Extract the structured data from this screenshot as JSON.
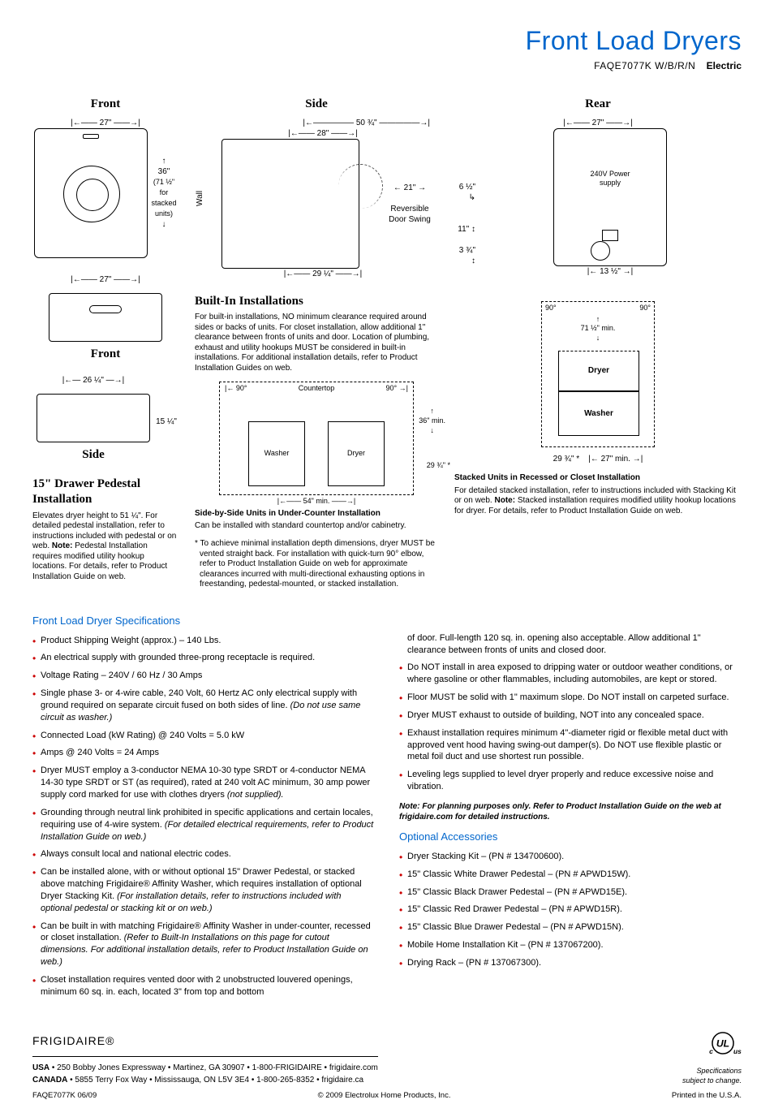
{
  "header": {
    "title": "Front Load Dryers",
    "model": "FAQE7077K W/B/R/N",
    "type": "Electric"
  },
  "colors": {
    "accent_blue": "#0066cc",
    "bullet_red": "#c00000",
    "text": "#000000",
    "background": "#ffffff"
  },
  "diagrams": {
    "front": {
      "title": "Front",
      "width_dim": "27\"",
      "height_dim": "36\"",
      "height_note": "(71 ½\" for stacked units)"
    },
    "side": {
      "title": "Side",
      "wall_label": "Wall",
      "depth_top": "50 ¾\"",
      "depth_28": "28\"",
      "depth_21": "21\"",
      "door_swing": "Reversible Door Swing",
      "depth_bottom": "29 ¼\""
    },
    "rear": {
      "title": "Rear",
      "width": "27\"",
      "power_label": "240V Power supply",
      "dim_6half": "6 ½\"",
      "dim_11": "11\"",
      "dim_3_3_4": "3 ¾\"",
      "dim_13half": "13 ½\""
    },
    "pedestal": {
      "front_label": "Front",
      "side_label": "Side",
      "front_width": "27\"",
      "side_depth": "26 ¼\"",
      "side_height": "15 ¼\"",
      "title": "15\" Drawer Pedestal Installation",
      "body": "Elevates dryer height to 51 ¼\". For detailed pedestal installation, refer to instructions included with pedestal or on web.",
      "note_label": "Note:",
      "note_body": "Pedestal Installation requires modified utility hookup locations. For details, refer to Product Installation Guide on web."
    },
    "builtin": {
      "title": "Built-In Installations",
      "body": "For built-in installations, NO minimum clearance required around sides or backs of units. For closet installation, allow additional 1\" clearance between fronts of units and door. Location of plumbing, exhaust and utility hookups MUST be considered in built-in installations. For additional installation details, refer to Product Installation Guides on web.",
      "ninety_l": "90°",
      "ninety_r": "90°",
      "countertop": "Countertop",
      "height_min": "36\" min.",
      "width_min": "54\" min.",
      "depth_note": "29 ¾\" *",
      "washer": "Washer",
      "dryer": "Dryer",
      "caption_bold": "Side-by-Side Units in Under-Counter Installation",
      "caption_sub": "Can be installed with standard countertop and/or cabinetry.",
      "asterisk": "* To achieve minimal installation depth dimensions, dryer MUST be vented straight back. For installation with quick-turn 90° elbow, refer to Product Installation Guide on web for approximate clearances incurred with multi-directional exhausting options in freestanding, pedestal-mounted, or stacked installation."
    },
    "stacked": {
      "ninety_l": "90°",
      "ninety_r": "90°",
      "height": "71 ½\" min.",
      "dryer": "Dryer",
      "washer": "Washer",
      "depth": "29 ¾\" *",
      "width": "27\" min.",
      "caption_bold": "Stacked Units in Recessed or Closet Installation",
      "body": "For detailed stacked installation, refer to instructions included with Stacking Kit or on web.",
      "note_label": "Note:",
      "note_body": "Stacked installation requires modified utility hookup locations for dryer. For details, refer to Product Installation Guide on web."
    }
  },
  "specs": {
    "title": "Front Load Dryer Specifications",
    "left": [
      {
        "t": "Product Shipping Weight (approx.) – 140 Lbs."
      },
      {
        "t": "An electrical supply with grounded three-prong receptacle is required."
      },
      {
        "t": "Voltage Rating – 240V / 60 Hz / 30 Amps"
      },
      {
        "t": "Single phase 3- or 4-wire cable, 240 Volt, 60 Hertz AC only electrical supply with ground required on separate circuit fused on both sides of line. ",
        "i": "(Do not use same circuit as washer.)"
      },
      {
        "t": "Connected Load (kW Rating) @ 240 Volts = 5.0 kW"
      },
      {
        "t": "Amps @ 240 Volts = 24 Amps"
      },
      {
        "t": "Dryer MUST employ a 3-conductor NEMA 10-30 type SRDT or 4-conductor NEMA 14-30 type SRDT or ST (as required), rated at 240 volt AC minimum, 30 amp power supply cord marked for use with clothes dryers ",
        "i": "(not supplied)."
      },
      {
        "t": "Grounding through neutral link prohibited in specific applications and certain locales, requiring use of 4-wire system. ",
        "i": "(For detailed electrical requirements, refer to Product Installation Guide on web.)"
      },
      {
        "t": "Always consult local and national electric codes."
      },
      {
        "t": "Can be installed alone, with or without optional 15\" Drawer Pedestal, or stacked above matching Frigidaire® Affinity Washer, which requires installation of optional Dryer Stacking Kit. ",
        "i": "(For installation details, refer to instructions included with optional pedestal or stacking kit or on web.)"
      },
      {
        "t": "Can be built in with matching Frigidaire® Affinity Washer in under-counter, recessed or closet installation. ",
        "i": "(Refer to Built-In Installations on this page for cutout dimensions. For additional installation details, refer to Product Installation Guide on web.)"
      },
      {
        "t": "Closet installation requires vented door with 2 unobstructed louvered openings, minimum 60 sq. in. each, located 3\" from top and bottom"
      }
    ],
    "right_continue": [
      {
        "t": "of door. Full-length 120 sq. in. opening also acceptable. Allow additional 1\" clearance between fronts of units and closed door.",
        "nobullet": true
      },
      {
        "t": "Do NOT install in area exposed to dripping water or outdoor weather conditions, or where gasoline or other flammables, including automobiles, are kept or stored."
      },
      {
        "t": "Floor MUST be solid with 1\" maximum slope. Do NOT install on carpeted surface."
      },
      {
        "t": "Dryer MUST exhaust to outside of building, NOT into any concealed space."
      },
      {
        "t": "Exhaust installation requires minimum 4\"-diameter rigid or flexible metal duct with approved vent hood having swing-out damper(s). Do NOT use flexible plastic or metal foil duct and use shortest run possible."
      },
      {
        "t": "Leveling legs supplied to level dryer properly and reduce excessive noise and vibration."
      }
    ],
    "note": "Note: For planning purposes only. Refer to Product Installation Guide on the web at frigidaire.com for detailed instructions."
  },
  "accessories": {
    "title": "Optional Accessories",
    "items": [
      "Dryer Stacking Kit – (PN # 134700600).",
      "15\" Classic White Drawer Pedestal – (PN # APWD15W).",
      "15\" Classic Black Drawer Pedestal – (PN # APWD15E).",
      "15\" Classic Red Drawer Pedestal – (PN # APWD15R).",
      "15\" Classic Blue Drawer Pedestal – (PN # APWD15N).",
      "Mobile Home Installation Kit – (PN # 137067200).",
      "Drying Rack – (PN # 137067300)."
    ]
  },
  "footer": {
    "brand": "FRIGIDAIRE®",
    "usa_label": "USA",
    "usa": " • 250 Bobby Jones Expressway • Martinez, GA 30907 • 1-800-FRIGIDAIRE • frigidaire.com",
    "canada_label": "CANADA",
    "canada": " • 5855 Terry Fox Way • Mississauga, ON L5V 3E4 • 1-800-265-8352 • frigidaire.ca",
    "spec_note1": "Specifications",
    "spec_note2": "subject to change.",
    "bottom_left": "FAQE7077K  06/09",
    "bottom_center": "© 2009 Electrolux Home Products, Inc.",
    "bottom_right": "Printed in the U.S.A."
  }
}
